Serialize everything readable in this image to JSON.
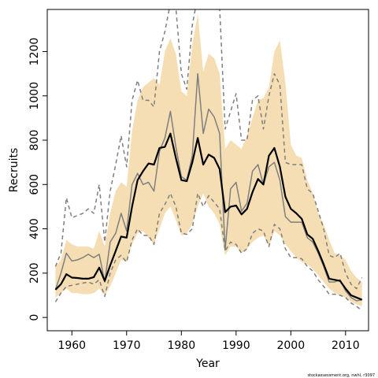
{
  "chart_data": {
    "type": "line",
    "title": "",
    "xlabel": "Year",
    "ylabel": "Recruits",
    "xlim": [
      1955.5,
      2014.2
    ],
    "ylim": [
      -60,
      1390
    ],
    "x_ticks": [
      1960,
      1970,
      1980,
      1990,
      2000,
      2010
    ],
    "y_ticks": [
      0,
      200,
      400,
      600,
      800,
      1000,
      1200
    ],
    "grid": false,
    "legend": "none",
    "credit": "stockassessment.org, nwhl, r3097",
    "colors": {
      "band": "#f5deb3",
      "estimate": "#000000",
      "alt_estimate": "#7f7f7f",
      "alt_bounds": "#7f7f7f"
    },
    "x": [
      1957,
      1958,
      1959,
      1960,
      1961,
      1962,
      1963,
      1964,
      1965,
      1966,
      1967,
      1968,
      1969,
      1970,
      1971,
      1972,
      1973,
      1974,
      1975,
      1976,
      1977,
      1978,
      1979,
      1980,
      1981,
      1982,
      1983,
      1984,
      1985,
      1986,
      1987,
      1988,
      1989,
      1990,
      1991,
      1992,
      1993,
      1994,
      1995,
      1996,
      1997,
      1998,
      1999,
      2000,
      2001,
      2002,
      2003,
      2004,
      2005,
      2006,
      2007,
      2008,
      2009,
      2010,
      2011,
      2012,
      2013
    ],
    "series": [
      {
        "style": "band",
        "lower": [
          90,
          110,
          130,
          110,
          110,
          105,
          105,
          110,
          130,
          100,
          140,
          200,
          260,
          250,
          330,
          380,
          390,
          360,
          330,
          400,
          470,
          500,
          440,
          370,
          380,
          420,
          500,
          560,
          500,
          470,
          420,
          280,
          320,
          320,
          290,
          310,
          340,
          360,
          370,
          320,
          390,
          370,
          330,
          300,
          270,
          250,
          240,
          220,
          190,
          160,
          130,
          110,
          100,
          90,
          70,
          60,
          50
        ],
        "upper": [
          230,
          260,
          350,
          330,
          320,
          320,
          320,
          310,
          390,
          320,
          470,
          570,
          610,
          590,
          840,
          980,
          1040,
          1060,
          1080,
          1050,
          1200,
          1260,
          1190,
          1020,
          1000,
          1230,
          1370,
          1110,
          1190,
          1170,
          1100,
          760,
          800,
          780,
          760,
          820,
          900,
          980,
          990,
          1040,
          1200,
          1250,
          1060,
          780,
          730,
          720,
          620,
          560,
          470,
          420,
          350,
          290,
          280,
          260,
          210,
          180,
          160
        ]
      },
      {
        "style": "solid-black",
        "values": [
          125,
          150,
          195,
          180,
          178,
          175,
          175,
          182,
          225,
          165,
          235,
          300,
          365,
          360,
          500,
          620,
          660,
          695,
          690,
          765,
          770,
          830,
          720,
          620,
          615,
          700,
          810,
          690,
          735,
          720,
          670,
          475,
          500,
          505,
          465,
          490,
          565,
          625,
          600,
          730,
          765,
          680,
          545,
          490,
          470,
          445,
          375,
          355,
          300,
          240,
          175,
          170,
          165,
          130,
          100,
          90,
          80
        ]
      },
      {
        "style": "solid-gray",
        "values": [
          125,
          200,
          290,
          255,
          260,
          270,
          285,
          270,
          285,
          160,
          340,
          380,
          470,
          390,
          600,
          650,
          600,
          610,
          570,
          750,
          810,
          930,
          770,
          635,
          620,
          730,
          1100,
          830,
          940,
          905,
          830,
          305,
          580,
          610,
          480,
          515,
          660,
          690,
          600,
          680,
          700,
          620,
          455,
          430,
          430,
          430,
          360,
          340,
          290,
          230,
          160,
          160,
          170,
          120,
          90,
          75,
          80
        ]
      },
      {
        "style": "dashed-gray",
        "values": [
          70,
          110,
          140,
          145,
          150,
          155,
          160,
          150,
          170,
          95,
          200,
          260,
          280,
          250,
          350,
          400,
          370,
          370,
          330,
          470,
          510,
          560,
          500,
          380,
          375,
          400,
          560,
          500,
          550,
          520,
          490,
          300,
          340,
          330,
          290,
          310,
          380,
          400,
          390,
          320,
          420,
          400,
          310,
          270,
          270,
          265,
          230,
          210,
          170,
          140,
          105,
          105,
          100,
          90,
          65,
          50,
          30
        ]
      },
      {
        "style": "dashed-gray",
        "values": [
          230,
          290,
          540,
          450,
          460,
          470,
          490,
          470,
          600,
          340,
          570,
          690,
          820,
          680,
          980,
          1070,
          980,
          980,
          950,
          1200,
          1290,
          1420,
          1400,
          1100,
          1030,
          1320,
          1450,
          1400,
          1420,
          1420,
          1400,
          850,
          930,
          1010,
          800,
          800,
          980,
          1000,
          850,
          1000,
          1100,
          1050,
          700,
          690,
          690,
          690,
          580,
          560,
          480,
          400,
          280,
          270,
          290,
          200,
          150,
          130,
          180
        ]
      }
    ]
  }
}
